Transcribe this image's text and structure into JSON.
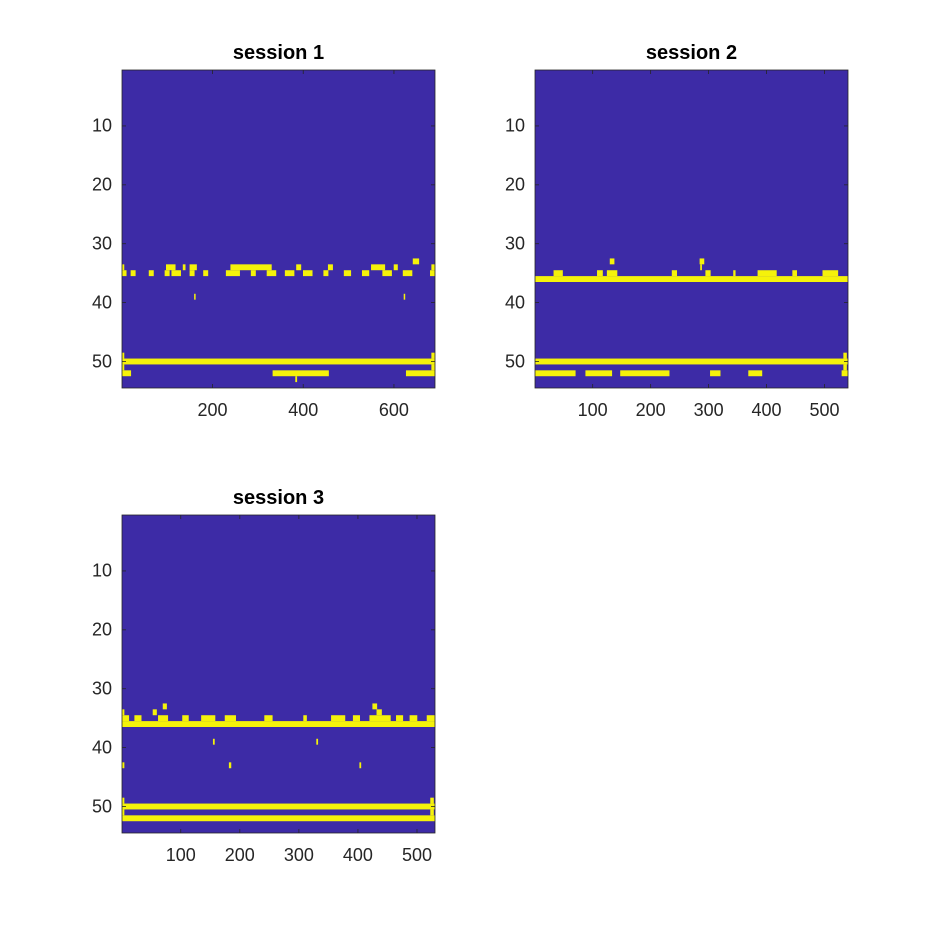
{
  "colors": {
    "background_cell": "#3d2ba6",
    "active_cell": "#f5f20a",
    "axis": "#262626"
  },
  "chart_data": [
    {
      "type": "heatmap",
      "title": "session 1",
      "xlim": [
        0.5,
        690.5
      ],
      "ylim": [
        0.5,
        54.5
      ],
      "y_reversed": true,
      "xticks": [
        200,
        400,
        600
      ],
      "xtick_labels": [
        "200",
        "400",
        "600"
      ],
      "yticks": [
        10,
        20,
        30,
        40,
        50
      ],
      "ytick_labels": [
        "10",
        "20",
        "30",
        "40",
        "50"
      ],
      "binary_values": [
        0,
        1
      ],
      "active_cells": [
        {
          "row": 33,
          "x": [
            642,
            655
          ]
        },
        {
          "row": 34,
          "x": [
            1,
            5
          ]
        },
        {
          "row": 34,
          "x": [
            98,
            118
          ]
        },
        {
          "row": 34,
          "x": [
            135,
            140
          ]
        },
        {
          "row": 34,
          "x": [
            150,
            165
          ]
        },
        {
          "row": 34,
          "x": [
            240,
            330
          ]
        },
        {
          "row": 34,
          "x": [
            385,
            395
          ]
        },
        {
          "row": 34,
          "x": [
            455,
            465
          ]
        },
        {
          "row": 34,
          "x": [
            550,
            580
          ]
        },
        {
          "row": 34,
          "x": [
            600,
            608
          ]
        },
        {
          "row": 34,
          "x": [
            683,
            690
          ]
        },
        {
          "row": 35,
          "x": [
            1,
            10
          ]
        },
        {
          "row": 35,
          "x": [
            20,
            30
          ]
        },
        {
          "row": 35,
          "x": [
            60,
            70
          ]
        },
        {
          "row": 35,
          "x": [
            95,
            105
          ]
        },
        {
          "row": 35,
          "x": [
            110,
            130
          ]
        },
        {
          "row": 35,
          "x": [
            150,
            160
          ]
        },
        {
          "row": 35,
          "x": [
            180,
            190
          ]
        },
        {
          "row": 35,
          "x": [
            230,
            260
          ]
        },
        {
          "row": 35,
          "x": [
            285,
            295
          ]
        },
        {
          "row": 35,
          "x": [
            320,
            340
          ]
        },
        {
          "row": 35,
          "x": [
            360,
            380
          ]
        },
        {
          "row": 35,
          "x": [
            400,
            420
          ]
        },
        {
          "row": 35,
          "x": [
            445,
            455
          ]
        },
        {
          "row": 35,
          "x": [
            490,
            505
          ]
        },
        {
          "row": 35,
          "x": [
            530,
            545
          ]
        },
        {
          "row": 35,
          "x": [
            575,
            595
          ]
        },
        {
          "row": 35,
          "x": [
            620,
            640
          ]
        },
        {
          "row": 35,
          "x": [
            680,
            690
          ]
        },
        {
          "row": 39,
          "x": [
            160,
            162
          ]
        },
        {
          "row": 39,
          "x": [
            622,
            624
          ]
        },
        {
          "row": 49,
          "x": [
            1,
            5
          ]
        },
        {
          "row": 49,
          "x": [
            683,
            690
          ]
        },
        {
          "row": 50,
          "x": [
            1,
            690
          ]
        },
        {
          "row": 51,
          "x": [
            1,
            5
          ]
        },
        {
          "row": 51,
          "x": [
            683,
            690
          ]
        },
        {
          "row": 52,
          "x": [
            1,
            20
          ]
        },
        {
          "row": 52,
          "x": [
            333,
            456
          ]
        },
        {
          "row": 52,
          "x": [
            627,
            690
          ]
        },
        {
          "row": 53,
          "x": [
            383,
            386
          ]
        }
      ]
    },
    {
      "type": "heatmap",
      "title": "session 2",
      "xlim": [
        0.5,
        540.5
      ],
      "ylim": [
        0.5,
        54.5
      ],
      "y_reversed": true,
      "xticks": [
        100,
        200,
        300,
        400,
        500
      ],
      "xtick_labels": [
        "100",
        "200",
        "300",
        "400",
        "500"
      ],
      "yticks": [
        10,
        20,
        30,
        40,
        50
      ],
      "ytick_labels": [
        "10",
        "20",
        "30",
        "40",
        "50"
      ],
      "binary_values": [
        0,
        1
      ],
      "active_cells": [
        {
          "row": 33,
          "x": [
            130,
            137
          ]
        },
        {
          "row": 33,
          "x": [
            285,
            292
          ]
        },
        {
          "row": 34,
          "x": [
            286,
            288
          ]
        },
        {
          "row": 35,
          "x": [
            33,
            48
          ]
        },
        {
          "row": 35,
          "x": [
            108,
            117
          ]
        },
        {
          "row": 35,
          "x": [
            125,
            142
          ]
        },
        {
          "row": 35,
          "x": [
            237,
            245
          ]
        },
        {
          "row": 35,
          "x": [
            295,
            303
          ]
        },
        {
          "row": 35,
          "x": [
            343,
            346
          ]
        },
        {
          "row": 35,
          "x": [
            385,
            417
          ]
        },
        {
          "row": 35,
          "x": [
            445,
            452
          ]
        },
        {
          "row": 35,
          "x": [
            497,
            523
          ]
        },
        {
          "row": 36,
          "x": [
            1,
            540
          ]
        },
        {
          "row": 49,
          "x": [
            533,
            538
          ]
        },
        {
          "row": 50,
          "x": [
            1,
            540
          ]
        },
        {
          "row": 51,
          "x": [
            533,
            538
          ]
        },
        {
          "row": 52,
          "x": [
            1,
            70
          ]
        },
        {
          "row": 52,
          "x": [
            88,
            133
          ]
        },
        {
          "row": 52,
          "x": [
            148,
            232
          ]
        },
        {
          "row": 52,
          "x": [
            303,
            320
          ]
        },
        {
          "row": 52,
          "x": [
            369,
            392
          ]
        },
        {
          "row": 52,
          "x": [
            530,
            540
          ]
        }
      ]
    },
    {
      "type": "heatmap",
      "title": "session 3",
      "xlim": [
        0.5,
        530.5
      ],
      "ylim": [
        0.5,
        54.5
      ],
      "y_reversed": true,
      "xticks": [
        100,
        200,
        300,
        400,
        500
      ],
      "xtick_labels": [
        "100",
        "200",
        "300",
        "400",
        "500"
      ],
      "yticks": [
        10,
        20,
        30,
        40,
        50
      ],
      "ytick_labels": [
        "10",
        "20",
        "30",
        "40",
        "50"
      ],
      "binary_values": [
        0,
        1
      ],
      "active_cells": [
        {
          "row": 33,
          "x": [
            70,
            76
          ]
        },
        {
          "row": 33,
          "x": [
            425,
            432
          ]
        },
        {
          "row": 34,
          "x": [
            1,
            4
          ]
        },
        {
          "row": 34,
          "x": [
            53,
            59
          ]
        },
        {
          "row": 34,
          "x": [
            432,
            440
          ]
        },
        {
          "row": 35,
          "x": [
            1,
            12
          ]
        },
        {
          "row": 35,
          "x": [
            22,
            33
          ]
        },
        {
          "row": 35,
          "x": [
            62,
            78
          ]
        },
        {
          "row": 35,
          "x": [
            103,
            113
          ]
        },
        {
          "row": 35,
          "x": [
            135,
            158
          ]
        },
        {
          "row": 35,
          "x": [
            175,
            193
          ]
        },
        {
          "row": 35,
          "x": [
            242,
            255
          ]
        },
        {
          "row": 35,
          "x": [
            308,
            313
          ]
        },
        {
          "row": 35,
          "x": [
            355,
            378
          ]
        },
        {
          "row": 35,
          "x": [
            392,
            403
          ]
        },
        {
          "row": 35,
          "x": [
            420,
            455
          ]
        },
        {
          "row": 35,
          "x": [
            465,
            476
          ]
        },
        {
          "row": 35,
          "x": [
            488,
            500
          ]
        },
        {
          "row": 35,
          "x": [
            517,
            530
          ]
        },
        {
          "row": 36,
          "x": [
            1,
            530
          ]
        },
        {
          "row": 39,
          "x": [
            155,
            157
          ]
        },
        {
          "row": 39,
          "x": [
            330,
            332
          ]
        },
        {
          "row": 43,
          "x": [
            1,
            4
          ]
        },
        {
          "row": 43,
          "x": [
            182,
            185
          ]
        },
        {
          "row": 43,
          "x": [
            403,
            405
          ]
        },
        {
          "row": 49,
          "x": [
            1,
            4
          ]
        },
        {
          "row": 49,
          "x": [
            523,
            528
          ]
        },
        {
          "row": 50,
          "x": [
            1,
            530
          ]
        },
        {
          "row": 51,
          "x": [
            1,
            4
          ]
        },
        {
          "row": 51,
          "x": [
            523,
            528
          ]
        },
        {
          "row": 52,
          "x": [
            1,
            530
          ]
        }
      ]
    }
  ]
}
